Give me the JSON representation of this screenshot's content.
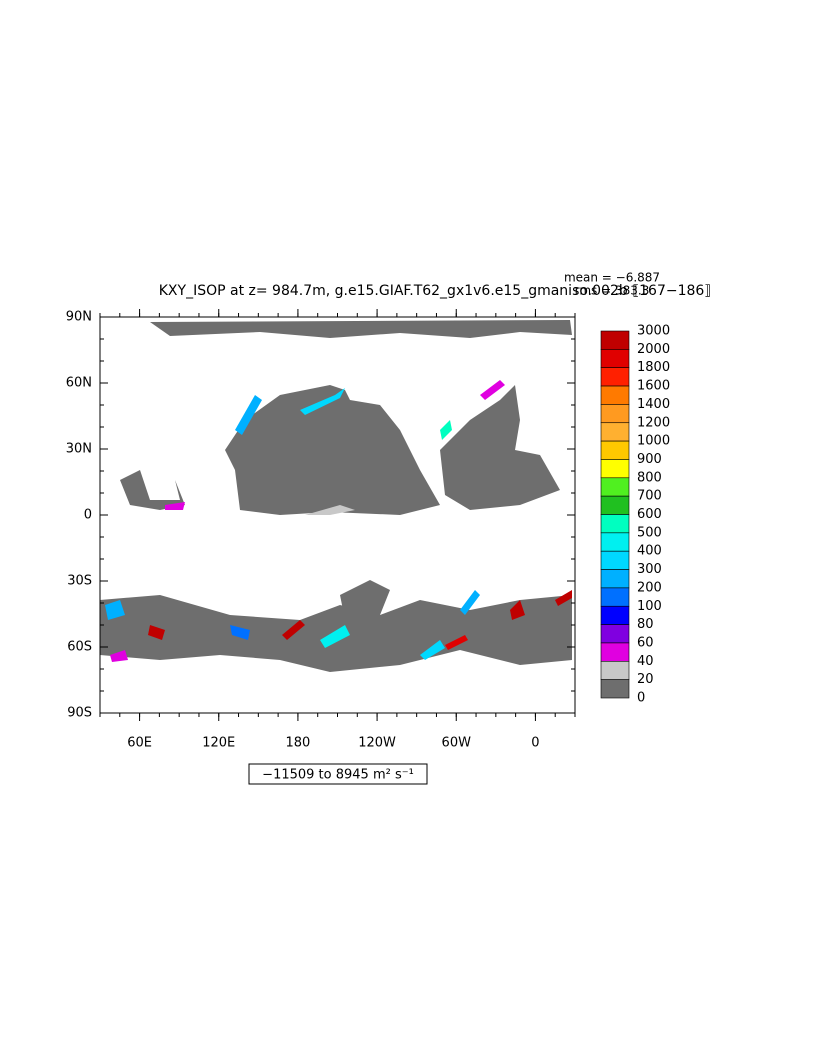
{
  "title": "KXY_ISOP at z= 984.7m, g.e15.GIAF.T62_gx1v6.e15_gmaniso.002b ⟦167−186⟧",
  "stats": {
    "mean": "mean = −6.887",
    "rms": "rms = 383.3"
  },
  "map": {
    "lat_labels": [
      "90N",
      "60N",
      "30N",
      "0",
      "30S",
      "60S",
      "90S"
    ],
    "lon_labels": [
      "60E",
      "120E",
      "180",
      "120W",
      "60W",
      "0"
    ]
  },
  "colorbar": {
    "labels": [
      "3000",
      "2000",
      "1800",
      "1600",
      "1400",
      "1200",
      "1000",
      "900",
      "800",
      "700",
      "600",
      "500",
      "400",
      "300",
      "200",
      "100",
      "80",
      "60",
      "40",
      "20",
      "0"
    ],
    "colors": [
      "#c00000",
      "#e00000",
      "#ff2000",
      "#ff7a00",
      "#ff9a20",
      "#ffb030",
      "#ffc800",
      "#ffff00",
      "#50f020",
      "#20c020",
      "#00ffc0",
      "#00f0f0",
      "#00d8ff",
      "#00b0ff",
      "#0070ff",
      "#0000ff",
      "#8000e0",
      "#e000e0",
      "#c8c8c8",
      "#6e6e6e"
    ]
  },
  "range_label": "−11509 to 8945 m² s⁻¹"
}
